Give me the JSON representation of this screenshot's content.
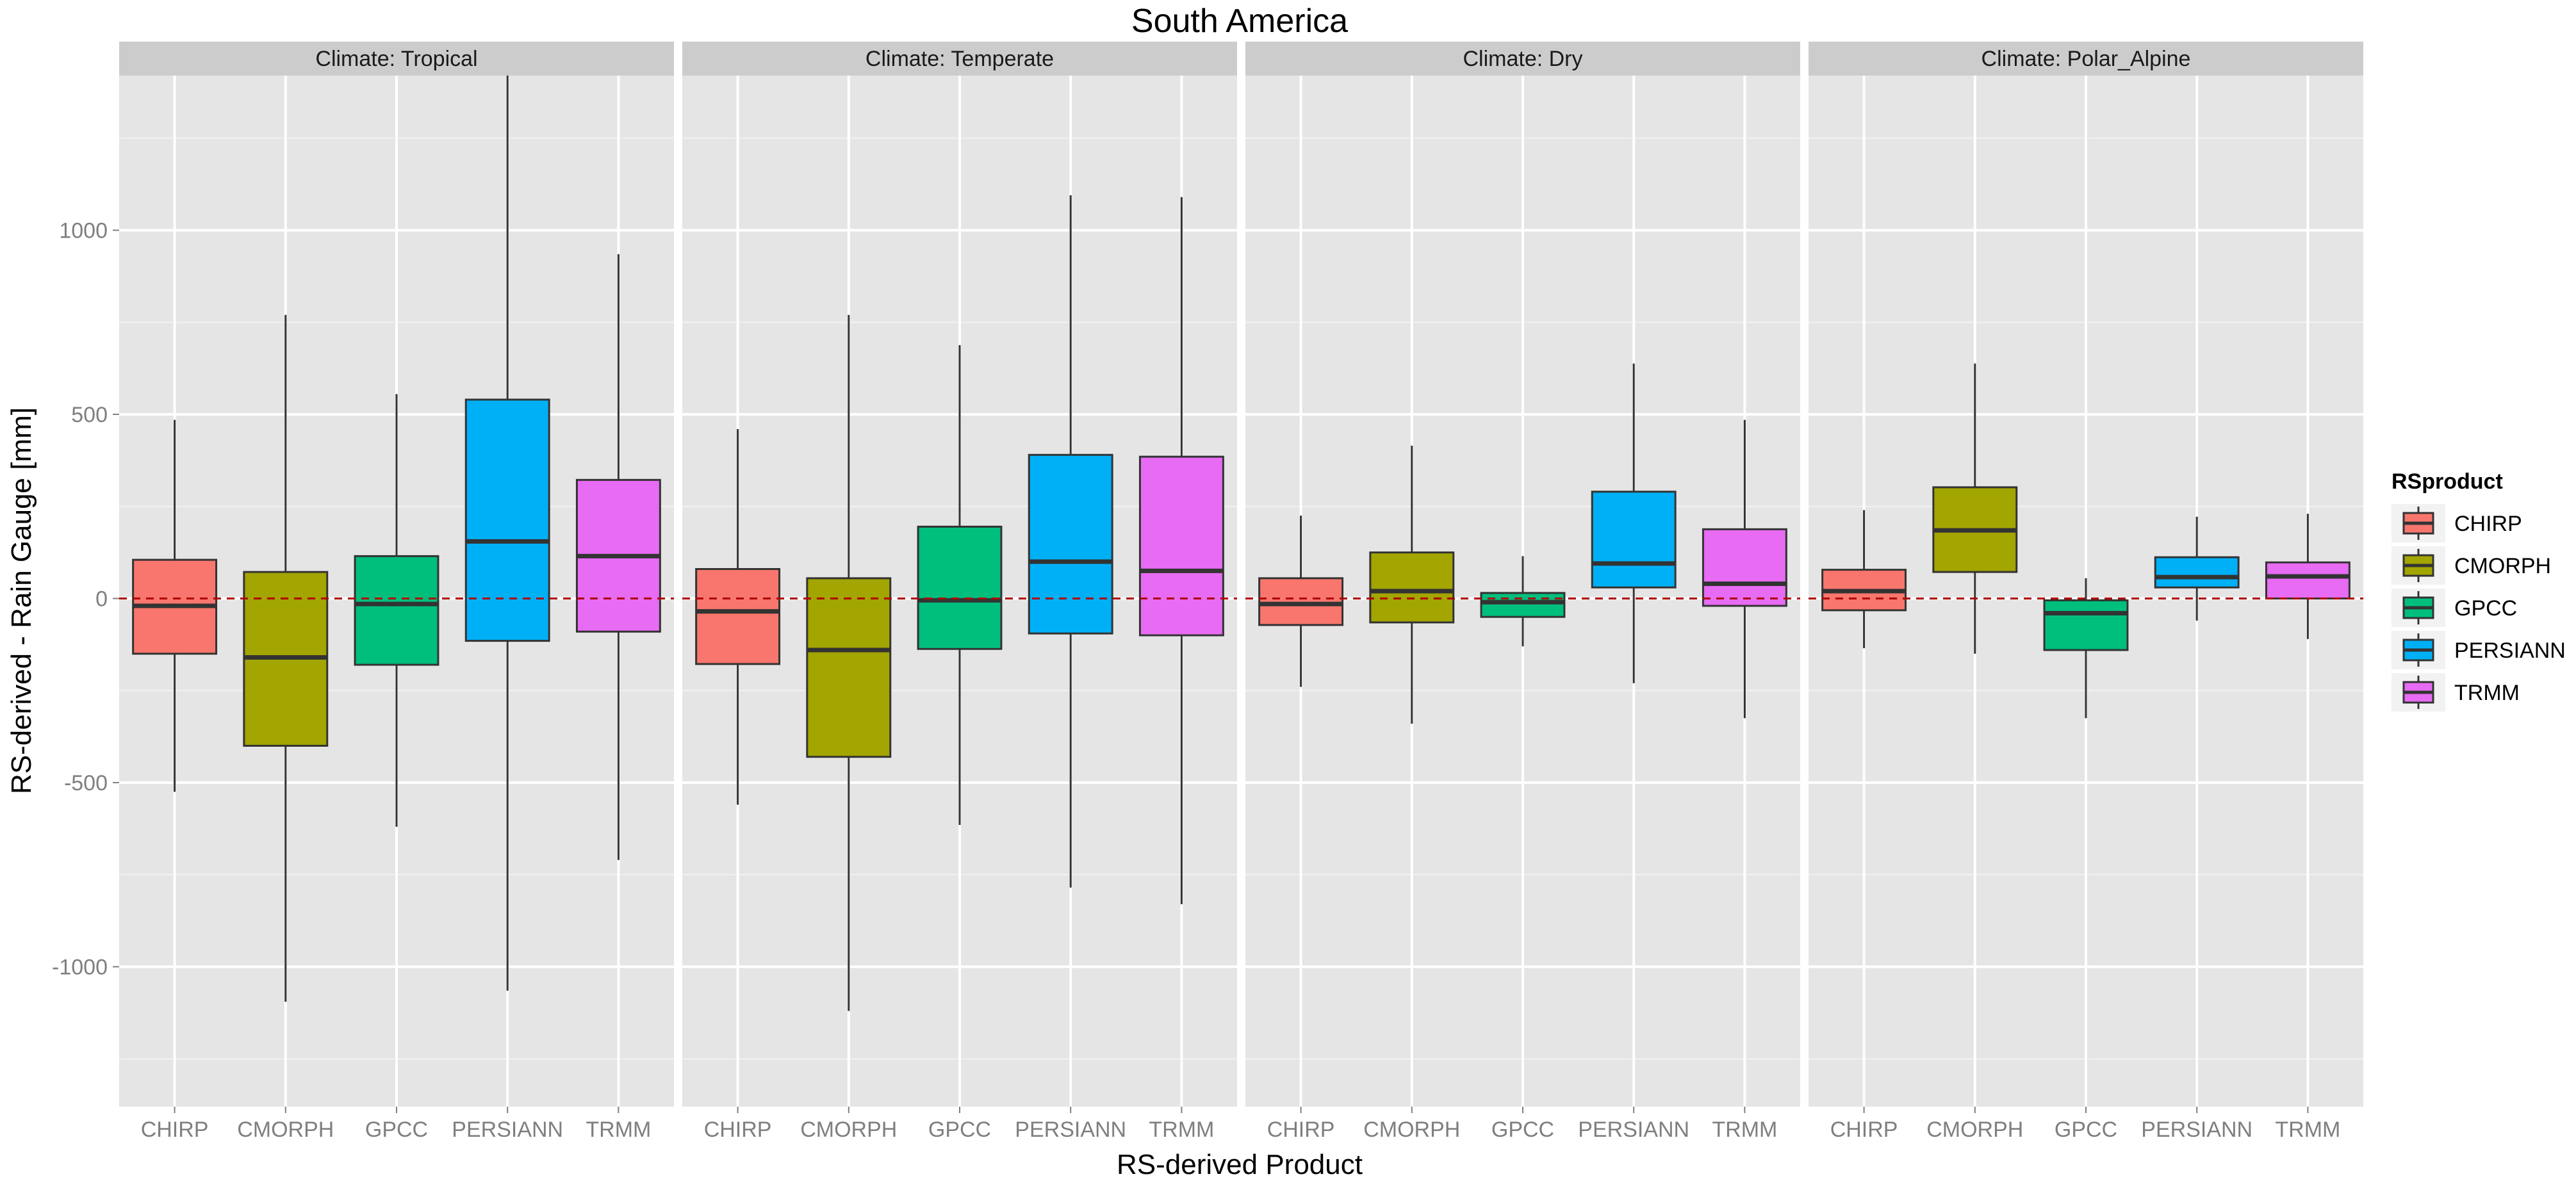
{
  "chart_data": {
    "type": "boxplot",
    "title": "South America",
    "xlabel": "RS-derived Product",
    "ylabel": "RS-derived - Rain Gauge [mm]",
    "ylim": [
      -1380,
      1420
    ],
    "yticks": [
      -1000,
      -500,
      0,
      500,
      1000
    ],
    "ytick_labels": [
      "-1000",
      "-500",
      "0",
      "500",
      "1000"
    ],
    "reference_line": 0,
    "categories": [
      "CHIRP",
      "CMORPH",
      "GPCC",
      "PERSIANN",
      "TRMM"
    ],
    "colors": {
      "CHIRP": "#F8766D",
      "CMORPH": "#A3A500",
      "GPCC": "#00BF7D",
      "PERSIANN": "#00B0F6",
      "TRMM": "#E76BF3"
    },
    "legend": {
      "title": "RSproduct",
      "entries": [
        "CHIRP",
        "CMORPH",
        "GPCC",
        "PERSIANN",
        "TRMM"
      ]
    },
    "panels": [
      {
        "label": "Climate: Tropical",
        "boxes": [
          {
            "product": "CHIRP",
            "whisker_low": -525,
            "q1": -150,
            "median": -20,
            "q3": 105,
            "whisker_high": 485
          },
          {
            "product": "CMORPH",
            "whisker_low": -1095,
            "q1": -400,
            "median": -160,
            "q3": 72,
            "whisker_high": 770
          },
          {
            "product": "GPCC",
            "whisker_low": -620,
            "q1": -180,
            "median": -15,
            "q3": 115,
            "whisker_high": 555
          },
          {
            "product": "PERSIANN",
            "whisker_low": -1065,
            "q1": -115,
            "median": 155,
            "q3": 540,
            "whisker_high": 1420
          },
          {
            "product": "TRMM",
            "whisker_low": -710,
            "q1": -90,
            "median": 115,
            "q3": 322,
            "whisker_high": 935
          }
        ]
      },
      {
        "label": "Climate: Temperate",
        "boxes": [
          {
            "product": "CHIRP",
            "whisker_low": -560,
            "q1": -178,
            "median": -35,
            "q3": 80,
            "whisker_high": 460
          },
          {
            "product": "CMORPH",
            "whisker_low": -1120,
            "q1": -430,
            "median": -140,
            "q3": 55,
            "whisker_high": 770
          },
          {
            "product": "GPCC",
            "whisker_low": -615,
            "q1": -137,
            "median": -5,
            "q3": 195,
            "whisker_high": 688
          },
          {
            "product": "PERSIANN",
            "whisker_low": -785,
            "q1": -95,
            "median": 100,
            "q3": 390,
            "whisker_high": 1095
          },
          {
            "product": "TRMM",
            "whisker_low": -830,
            "q1": -100,
            "median": 75,
            "q3": 385,
            "whisker_high": 1090
          }
        ]
      },
      {
        "label": "Climate: Dry",
        "boxes": [
          {
            "product": "CHIRP",
            "whisker_low": -240,
            "q1": -72,
            "median": -15,
            "q3": 55,
            "whisker_high": 225
          },
          {
            "product": "CMORPH",
            "whisker_low": -340,
            "q1": -65,
            "median": 20,
            "q3": 125,
            "whisker_high": 415
          },
          {
            "product": "GPCC",
            "whisker_low": -130,
            "q1": -50,
            "median": -10,
            "q3": 15,
            "whisker_high": 115
          },
          {
            "product": "PERSIANN",
            "whisker_low": -230,
            "q1": 30,
            "median": 95,
            "q3": 290,
            "whisker_high": 638
          },
          {
            "product": "TRMM",
            "whisker_low": -325,
            "q1": -20,
            "median": 40,
            "q3": 188,
            "whisker_high": 485
          }
        ]
      },
      {
        "label": "Climate: Polar_Alpine",
        "boxes": [
          {
            "product": "CHIRP",
            "whisker_low": -135,
            "q1": -32,
            "median": 20,
            "q3": 78,
            "whisker_high": 240
          },
          {
            "product": "CMORPH",
            "whisker_low": -150,
            "q1": 72,
            "median": 185,
            "q3": 302,
            "whisker_high": 638
          },
          {
            "product": "GPCC",
            "whisker_low": -325,
            "q1": -140,
            "median": -40,
            "q3": -5,
            "whisker_high": 55
          },
          {
            "product": "PERSIANN",
            "whisker_low": -60,
            "q1": 30,
            "median": 58,
            "q3": 112,
            "whisker_high": 222
          },
          {
            "product": "TRMM",
            "whisker_low": -110,
            "q1": 0,
            "median": 60,
            "q3": 98,
            "whisker_high": 230
          }
        ]
      }
    ]
  }
}
